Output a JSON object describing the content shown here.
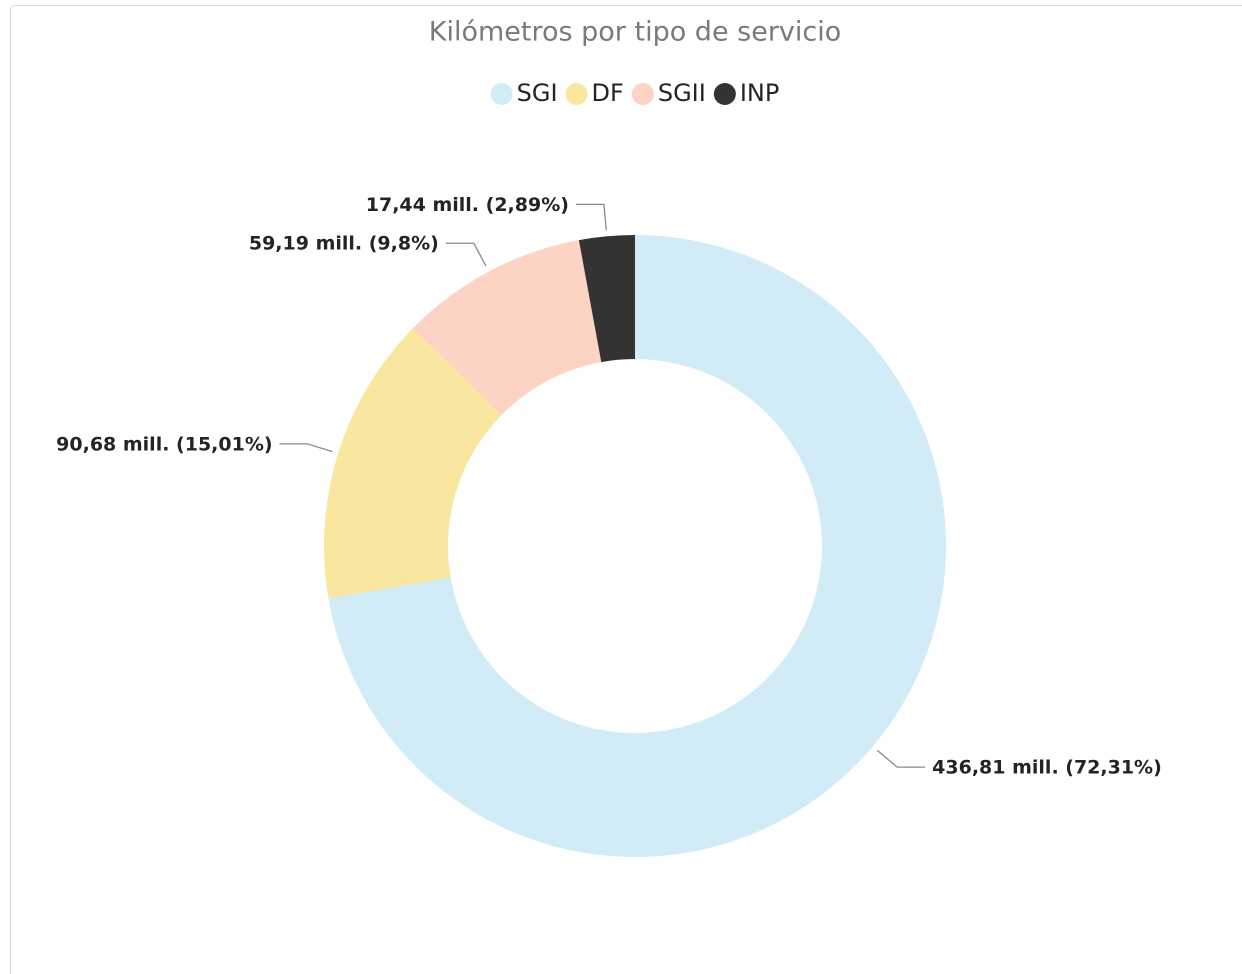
{
  "chart_data": {
    "type": "donut",
    "title": "Kilómetros por tipo de servicio",
    "categories": [
      "SGI",
      "DF",
      "SGII",
      "INP"
    ],
    "values": [
      436.81,
      90.68,
      59.19,
      17.44
    ],
    "value_labels": [
      "436,81 mill. (72,31%)",
      "90,68 mill. (15,01%)",
      "59,19 mill. (9,8%)",
      "17,44 mill. (2,89%)"
    ],
    "colors": [
      "#d1ecf7",
      "#f9e79f",
      "#fdd3c3",
      "#333333"
    ],
    "legend": "top"
  }
}
